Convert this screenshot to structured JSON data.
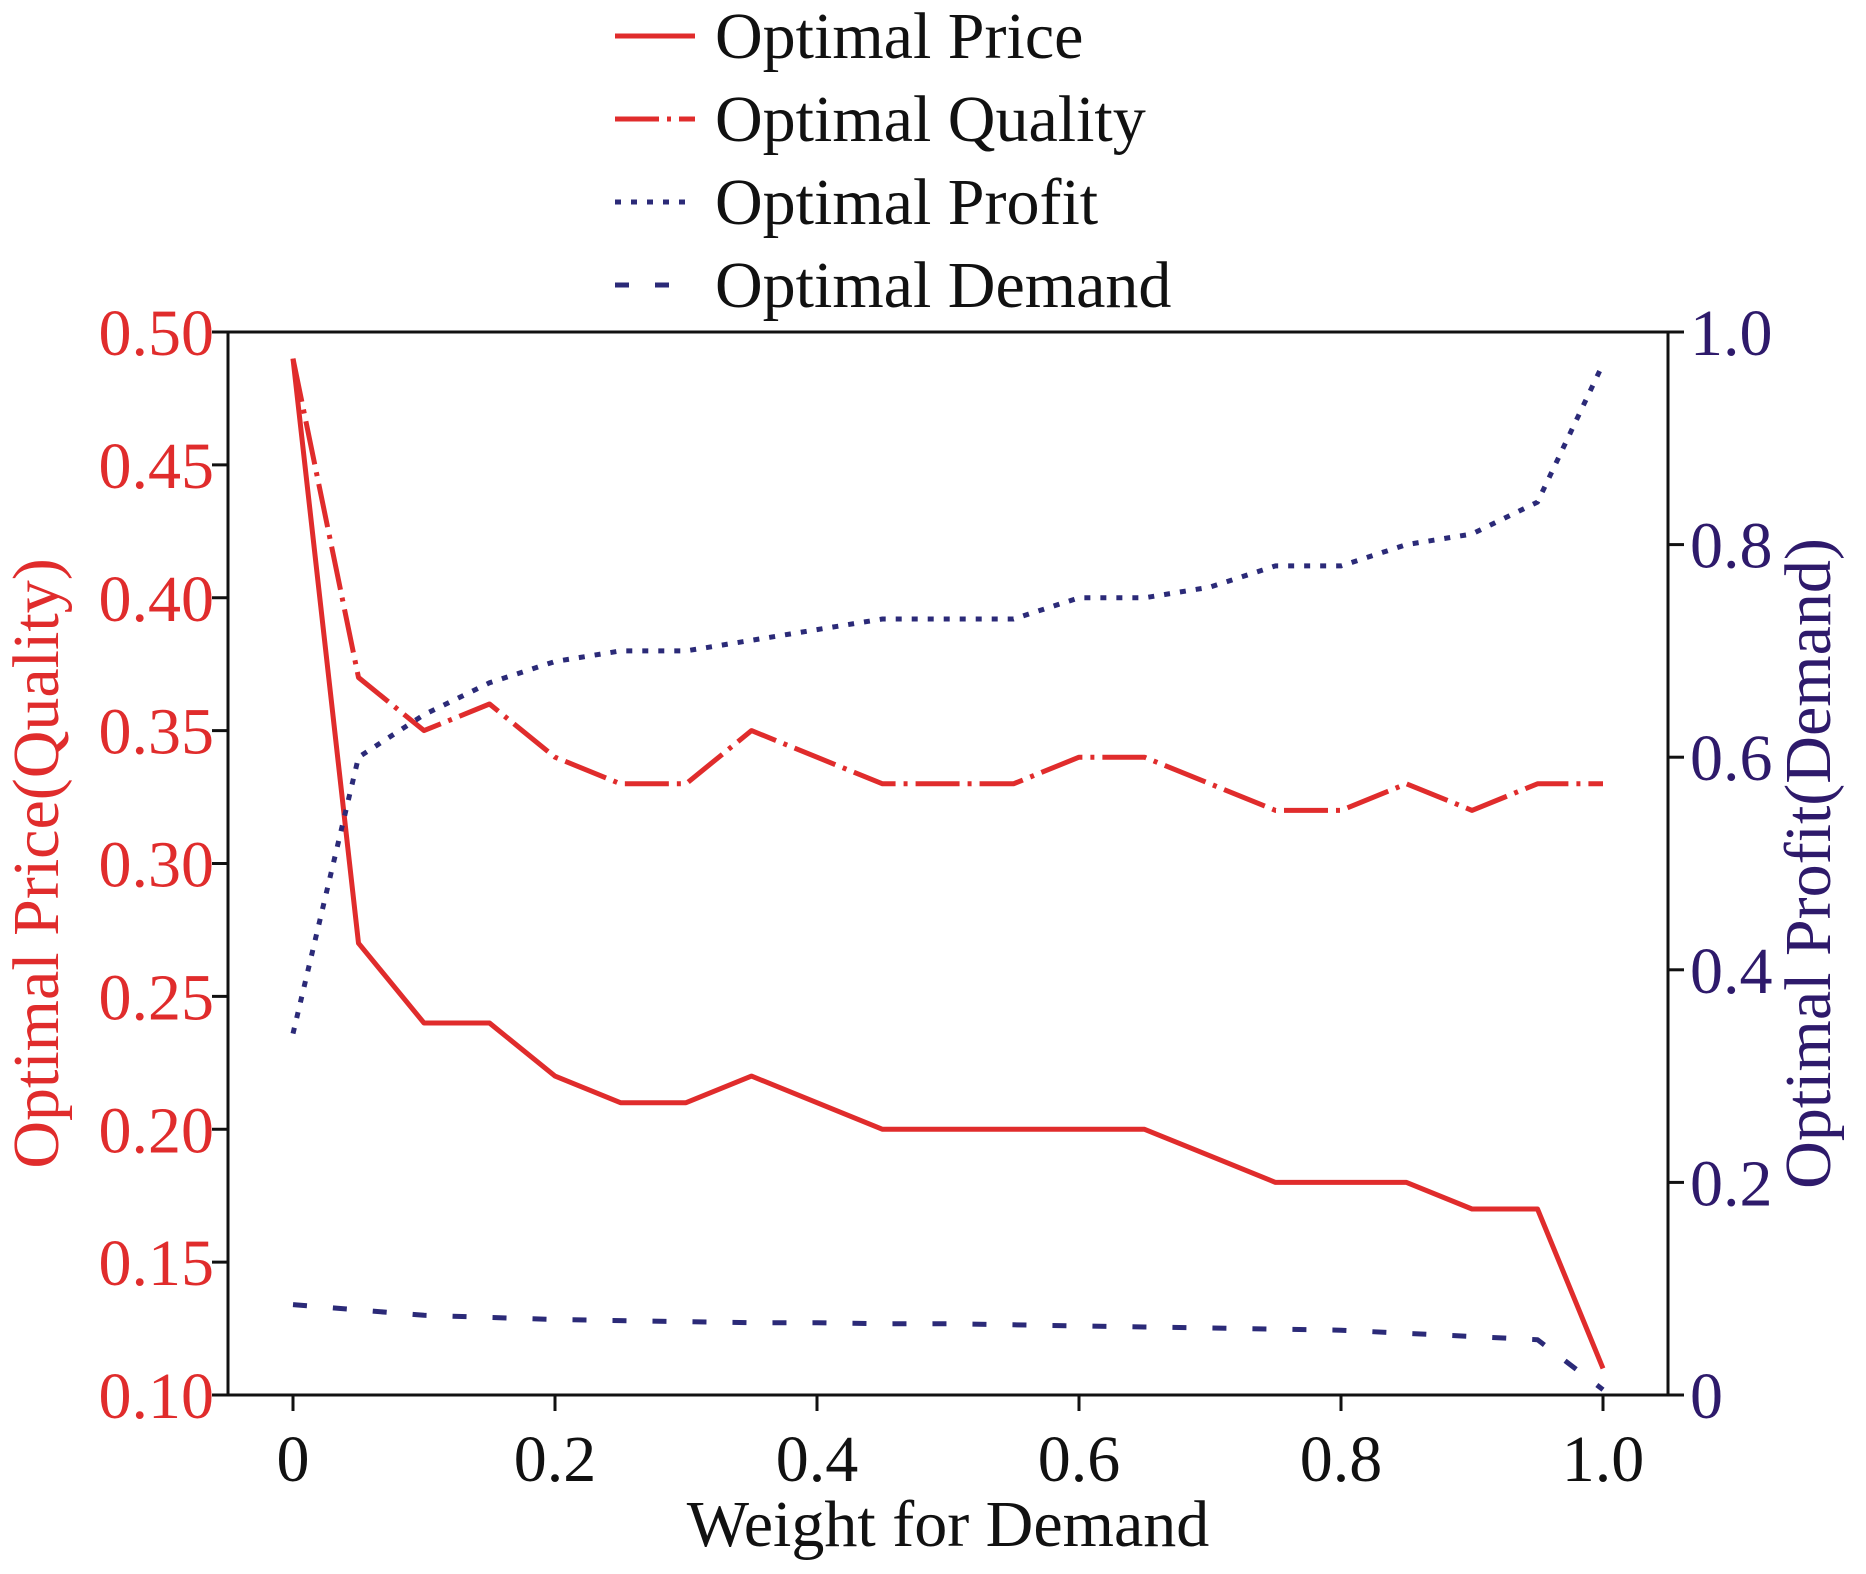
{
  "chart_data": {
    "type": "line",
    "title": "",
    "xlabel": "Weight for Demand",
    "ylabel_left": "Optimal Price(Quality)",
    "ylabel_right": "Optimal Profit(Demand)",
    "xlim": [
      0,
      1.0
    ],
    "ylim_left": [
      0.1,
      0.5
    ],
    "ylim_right": [
      0,
      1.0
    ],
    "x_ticks": [
      0,
      0.2,
      0.4,
      0.6,
      0.8,
      1.0
    ],
    "x_tick_labels": [
      "0",
      "0.2",
      "0.4",
      "0.6",
      "0.8",
      "1.0"
    ],
    "y_left_ticks": [
      0.1,
      0.15,
      0.2,
      0.25,
      0.3,
      0.35,
      0.4,
      0.45,
      0.5
    ],
    "y_left_tick_labels": [
      "0.10",
      "0.15",
      "0.20",
      "0.25",
      "0.30",
      "0.35",
      "0.40",
      "0.45",
      "0.50"
    ],
    "y_right_ticks": [
      0,
      0.2,
      0.4,
      0.6,
      0.8,
      1.0
    ],
    "y_right_tick_labels": [
      "0",
      "0.2",
      "0.4",
      "0.6",
      "0.8",
      "1.0"
    ],
    "grid": false,
    "legend_position": "top-center",
    "colors": {
      "left_axis": "#e02c2c",
      "right_axis": "#2e1a6b",
      "price": "#e02c2c",
      "quality": "#e02c2c",
      "profit": "#2b2a78",
      "demand": "#2b2a78"
    },
    "x": [
      0,
      0.05,
      0.1,
      0.15,
      0.2,
      0.25,
      0.3,
      0.35,
      0.4,
      0.45,
      0.5,
      0.55,
      0.6,
      0.65,
      0.7,
      0.75,
      0.8,
      0.85,
      0.9,
      0.95,
      1.0
    ],
    "series": [
      {
        "name": "Optimal Price",
        "axis": "left",
        "style": "solid",
        "values": [
          0.49,
          0.27,
          0.24,
          0.24,
          0.22,
          0.21,
          0.21,
          0.22,
          0.21,
          0.2,
          0.2,
          0.2,
          0.2,
          0.2,
          0.19,
          0.18,
          0.18,
          0.18,
          0.17,
          0.17,
          0.11
        ]
      },
      {
        "name": "Optimal Quality",
        "axis": "left",
        "style": "dashdot",
        "values": [
          0.49,
          0.37,
          0.35,
          0.36,
          0.34,
          0.33,
          0.33,
          0.35,
          0.34,
          0.33,
          0.33,
          0.33,
          0.34,
          0.34,
          0.33,
          0.32,
          0.32,
          0.33,
          0.32,
          0.33,
          0.33
        ]
      },
      {
        "name": "Optimal Profit",
        "axis": "right",
        "style": "dotted",
        "values": [
          0.34,
          0.6,
          0.64,
          0.67,
          0.69,
          0.7,
          0.7,
          0.71,
          0.72,
          0.73,
          0.73,
          0.73,
          0.75,
          0.75,
          0.76,
          0.78,
          0.78,
          0.8,
          0.81,
          0.84,
          0.97
        ]
      },
      {
        "name": "Optimal Demand",
        "axis": "right",
        "style": "dashed",
        "values": [
          0.085,
          0.08,
          0.075,
          0.073,
          0.071,
          0.07,
          0.069,
          0.068,
          0.068,
          0.067,
          0.067,
          0.066,
          0.065,
          0.064,
          0.063,
          0.062,
          0.061,
          0.058,
          0.055,
          0.052,
          0.005
        ]
      }
    ]
  }
}
